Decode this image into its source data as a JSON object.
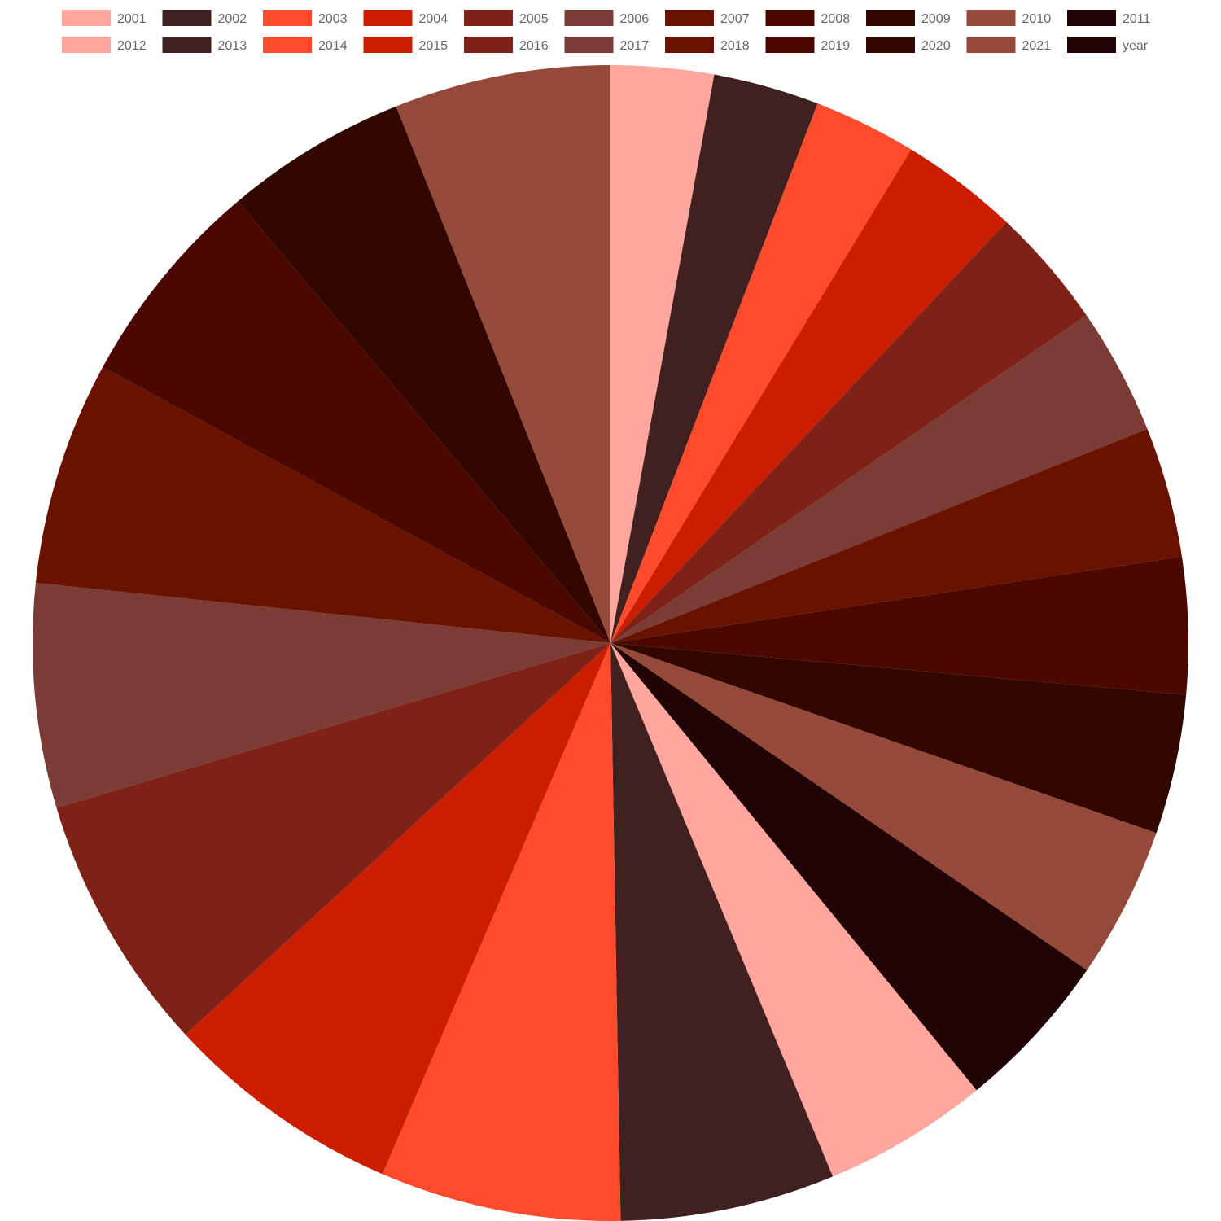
{
  "chart_data": {
    "type": "pie",
    "title": "",
    "legend_position": "top",
    "start_angle_deg": 0,
    "direction": "clockwise",
    "slices": [
      {
        "label": "2001",
        "value": 3.35,
        "color": "#ffa69e"
      },
      {
        "label": "2002",
        "value": 3.45,
        "color": "#402120"
      },
      {
        "label": "2003",
        "value": 3.35,
        "color": "#ff4a2c"
      },
      {
        "label": "2004",
        "value": 3.85,
        "color": "#cb1d00"
      },
      {
        "label": "2005",
        "value": 3.95,
        "color": "#7e2218"
      },
      {
        "label": "2006",
        "value": 4.15,
        "color": "#7b3c35"
      },
      {
        "label": "2007",
        "value": 4.25,
        "color": "#691200"
      },
      {
        "label": "2008",
        "value": 4.45,
        "color": "#4a0800"
      },
      {
        "label": "2009",
        "value": 4.55,
        "color": "#310700"
      },
      {
        "label": "2010",
        "value": 4.95,
        "color": "#94493b"
      },
      {
        "label": "2011",
        "value": 5.25,
        "color": "#210404"
      },
      {
        "label": "2012",
        "value": 5.4,
        "color": "#ffa69e"
      },
      {
        "label": "2013",
        "value": 7.0,
        "color": "#402120"
      },
      {
        "label": "2014",
        "value": 7.85,
        "color": "#ff4a2c"
      },
      {
        "label": "2015",
        "value": 7.8,
        "color": "#cb1d00"
      },
      {
        "label": "2016",
        "value": 8.45,
        "color": "#7e2218"
      },
      {
        "label": "2017",
        "value": 7.3,
        "color": "#7b3c35"
      },
      {
        "label": "2018",
        "value": 7.3,
        "color": "#691200"
      },
      {
        "label": "2019",
        "value": 6.9,
        "color": "#4a0800"
      },
      {
        "label": "2020",
        "value": 5.95,
        "color": "#310700"
      },
      {
        "label": "2021",
        "value": 7.05,
        "color": "#94493b"
      },
      {
        "label": "year",
        "value": 0,
        "color": "#210404"
      }
    ]
  }
}
